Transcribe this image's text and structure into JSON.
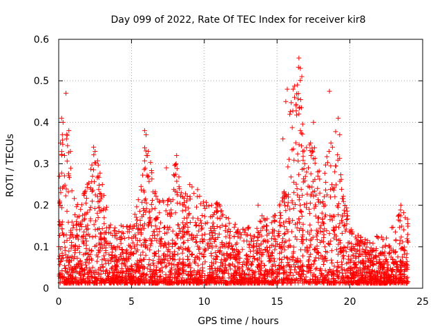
{
  "chart_data": {
    "type": "scatter",
    "title": "Day 099 of 2022, Rate Of TEC Index for receiver kir8",
    "xlabel": "GPS time / hours",
    "ylabel": "ROTI / TECUs",
    "xlim": [
      0,
      25
    ],
    "ylim": [
      0,
      0.6
    ],
    "xticks": [
      0,
      5,
      10,
      15,
      20,
      25
    ],
    "yticks": [
      0,
      0.1,
      0.2,
      0.3,
      0.4,
      0.5,
      0.6
    ],
    "grid": true,
    "marker": "+",
    "color": "#ff0000",
    "series": [
      {
        "name": "ROTI",
        "envelope": {
          "x": [
            0,
            0.3,
            0.6,
            1.0,
            1.5,
            2.0,
            2.5,
            3.0,
            3.5,
            4.0,
            4.5,
            5.0,
            5.5,
            6.0,
            6.5,
            7.0,
            7.5,
            8.0,
            8.5,
            9.0,
            9.5,
            10.0,
            10.5,
            11.0,
            11.5,
            12.0,
            12.5,
            13.0,
            13.5,
            14.0,
            14.5,
            15.0,
            15.5,
            16.0,
            16.5,
            17.0,
            17.5,
            18.0,
            18.5,
            19.0,
            19.5,
            20.0,
            20.5,
            21.0,
            21.5,
            22.0,
            22.5,
            23.0,
            23.5,
            24.0
          ],
          "y_max": [
            0.28,
            0.41,
            0.38,
            0.22,
            0.2,
            0.28,
            0.34,
            0.25,
            0.16,
            0.14,
            0.16,
            0.15,
            0.22,
            0.38,
            0.26,
            0.2,
            0.24,
            0.32,
            0.22,
            0.25,
            0.24,
            0.22,
            0.2,
            0.22,
            0.18,
            0.16,
            0.14,
            0.15,
            0.13,
            0.2,
            0.15,
            0.2,
            0.26,
            0.48,
            0.55,
            0.38,
            0.35,
            0.27,
            0.34,
            0.41,
            0.25,
            0.15,
            0.13,
            0.12,
            0.12,
            0.13,
            0.12,
            0.16,
            0.19,
            0.17
          ]
        },
        "points": [
          [
            0.05,
            0.27
          ],
          [
            0.12,
            0.35
          ],
          [
            0.2,
            0.41
          ],
          [
            0.25,
            0.37
          ],
          [
            0.3,
            0.4
          ],
          [
            0.4,
            0.32
          ],
          [
            0.5,
            0.47
          ],
          [
            0.7,
            0.38
          ],
          [
            0.8,
            0.33
          ],
          [
            2.4,
            0.34
          ],
          [
            2.5,
            0.33
          ],
          [
            5.9,
            0.38
          ],
          [
            6.0,
            0.37
          ],
          [
            7.4,
            0.29
          ],
          [
            8.1,
            0.32
          ],
          [
            15.7,
            0.48
          ],
          [
            15.6,
            0.45
          ],
          [
            16.1,
            0.48
          ],
          [
            16.2,
            0.46
          ],
          [
            16.3,
            0.44
          ],
          [
            16.5,
            0.555
          ],
          [
            16.6,
            0.53
          ],
          [
            16.7,
            0.51
          ],
          [
            16.4,
            0.49
          ],
          [
            16.5,
            0.42
          ],
          [
            16.6,
            0.38
          ],
          [
            18.6,
            0.475
          ],
          [
            18.7,
            0.35
          ],
          [
            18.8,
            0.34
          ],
          [
            19.2,
            0.41
          ],
          [
            19.3,
            0.37
          ],
          [
            17.5,
            0.4
          ],
          [
            17.3,
            0.35
          ],
          [
            15.4,
            0.36
          ],
          [
            16.9,
            0.3
          ],
          [
            3.0,
            0.25
          ],
          [
            2.7,
            0.27
          ],
          [
            8.5,
            0.22
          ],
          [
            9.0,
            0.25
          ],
          [
            10.5,
            0.2
          ],
          [
            13.7,
            0.2
          ],
          [
            14.3,
            0.15
          ],
          [
            23.5,
            0.2
          ],
          [
            23.8,
            0.17
          ]
        ]
      }
    ]
  }
}
